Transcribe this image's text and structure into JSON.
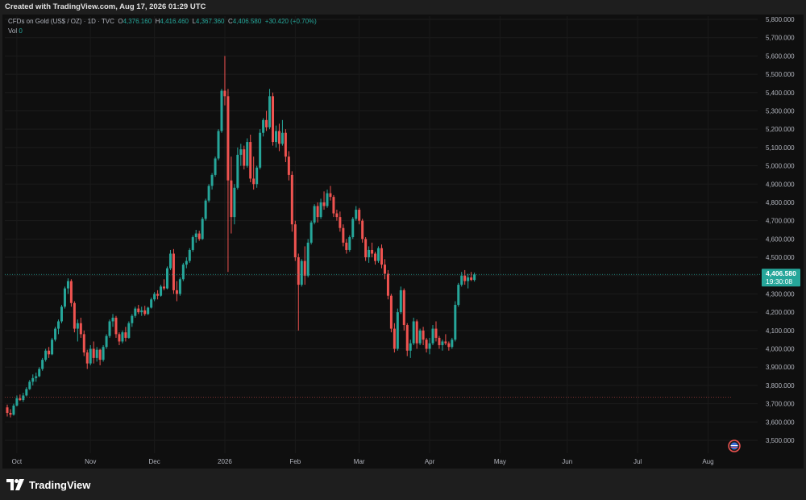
{
  "header": {
    "credit": "Created with TradingView.com, Aug 17, 2026 01:29 UTC"
  },
  "legend": {
    "symbol": "CFDs on Gold (US$ / OZ) · 1D · TVC",
    "open_label": "O",
    "open": "4,376.160",
    "high_label": "H",
    "high": "4,416.460",
    "low_label": "L",
    "low": "4,367.360",
    "close_label": "C",
    "close": "4,406.580",
    "change": "+30.420 (+0.70%)",
    "vol_label": "Vol",
    "vol_value": "0"
  },
  "price_badge": {
    "price": "4,406.580",
    "countdown": "19:30:08"
  },
  "footer": {
    "brand": "TradingView"
  },
  "colors": {
    "up": "#26a69a",
    "down": "#ef5350",
    "background": "#0f0f0f",
    "axis_text": "#b2b5be"
  },
  "chart_data": {
    "type": "candlestick",
    "interval": "1D",
    "ylim": [
      3450,
      5860
    ],
    "y_ticks": [
      3500,
      3600,
      3700,
      3800,
      3900,
      4000,
      4100,
      4200,
      4300,
      4400,
      4500,
      4600,
      4700,
      4800,
      4900,
      5000,
      5100,
      5200,
      5300,
      5400,
      5500,
      5600,
      5700,
      5800
    ],
    "y_tick_labels": [
      "3,500.000",
      "3,600.000",
      "3,700.000",
      "3,800.000",
      "3,900.000",
      "4,000.000",
      "4,100.000",
      "4,200.000",
      "4,300.000",
      "4,400.000",
      "4,500.000",
      "4,600.000",
      "4,700.000",
      "4,800.000",
      "4,900.000",
      "5,000.000",
      "5,100.000",
      "5,200.000",
      "5,300.000",
      "5,400.000",
      "5,500.000",
      "5,600.000",
      "5,700.000",
      "5,800.000"
    ],
    "x_ticks": [
      {
        "label": "Oct",
        "day": 3
      },
      {
        "label": "Nov",
        "day": 26
      },
      {
        "label": "Dec",
        "day": 46
      },
      {
        "label": "2026",
        "day": 68
      },
      {
        "label": "Feb",
        "day": 90
      },
      {
        "label": "Mar",
        "day": 110
      },
      {
        "label": "Apr",
        "day": 132
      },
      {
        "label": "May",
        "day": 154
      },
      {
        "label": "Jun",
        "day": 175
      },
      {
        "label": "Jul",
        "day": 197
      },
      {
        "label": "Aug",
        "day": 219
      }
    ],
    "last_price": 4406.58,
    "reference_line": 3735,
    "candles": [
      [
        3680,
        3695,
        3630,
        3650
      ],
      [
        3650,
        3670,
        3625,
        3640
      ],
      [
        3640,
        3700,
        3635,
        3690
      ],
      [
        3690,
        3745,
        3685,
        3730
      ],
      [
        3730,
        3750,
        3715,
        3720
      ],
      [
        3720,
        3760,
        3710,
        3745
      ],
      [
        3745,
        3790,
        3740,
        3780
      ],
      [
        3780,
        3830,
        3775,
        3820
      ],
      [
        3820,
        3860,
        3800,
        3840
      ],
      [
        3840,
        3870,
        3820,
        3850
      ],
      [
        3850,
        3900,
        3845,
        3890
      ],
      [
        3890,
        3950,
        3880,
        3940
      ],
      [
        3940,
        4000,
        3930,
        3990
      ],
      [
        3990,
        4010,
        3950,
        3970
      ],
      [
        3970,
        4060,
        3965,
        4050
      ],
      [
        4050,
        4120,
        4040,
        4110
      ],
      [
        4110,
        4160,
        4080,
        4150
      ],
      [
        4150,
        4240,
        4140,
        4230
      ],
      [
        4230,
        4340,
        4220,
        4330
      ],
      [
        4330,
        4385,
        4300,
        4370
      ],
      [
        4370,
        4380,
        4230,
        4250
      ],
      [
        4250,
        4260,
        4090,
        4110
      ],
      [
        4110,
        4160,
        4040,
        4140
      ],
      [
        4140,
        4170,
        4060,
        4080
      ],
      [
        4080,
        4100,
        3960,
        3980
      ],
      [
        3980,
        3995,
        3890,
        3920
      ],
      [
        3920,
        4020,
        3910,
        4000
      ],
      [
        4000,
        4040,
        3920,
        3950
      ],
      [
        3950,
        4010,
        3930,
        3995
      ],
      [
        3995,
        4000,
        3910,
        3940
      ],
      [
        3940,
        4020,
        3930,
        4010
      ],
      [
        4010,
        4080,
        4000,
        4070
      ],
      [
        4070,
        4160,
        4060,
        4150
      ],
      [
        4150,
        4190,
        4120,
        4170
      ],
      [
        4170,
        4180,
        4060,
        4080
      ],
      [
        4080,
        4090,
        4020,
        4040
      ],
      [
        4040,
        4100,
        4030,
        4090
      ],
      [
        4090,
        4120,
        4040,
        4060
      ],
      [
        4060,
        4150,
        4055,
        4140
      ],
      [
        4140,
        4190,
        4120,
        4180
      ],
      [
        4180,
        4230,
        4170,
        4220
      ],
      [
        4220,
        4240,
        4190,
        4200
      ],
      [
        4200,
        4230,
        4180,
        4210
      ],
      [
        4210,
        4235,
        4180,
        4190
      ],
      [
        4190,
        4230,
        4185,
        4225
      ],
      [
        4225,
        4280,
        4220,
        4270
      ],
      [
        4270,
        4310,
        4260,
        4300
      ],
      [
        4300,
        4320,
        4270,
        4290
      ],
      [
        4290,
        4350,
        4285,
        4340
      ],
      [
        4340,
        4380,
        4320,
        4330
      ],
      [
        4330,
        4450,
        4325,
        4440
      ],
      [
        4440,
        4540,
        4430,
        4520
      ],
      [
        4520,
        4545,
        4300,
        4320
      ],
      [
        4320,
        4370,
        4260,
        4300
      ],
      [
        4300,
        4390,
        4290,
        4380
      ],
      [
        4380,
        4470,
        4370,
        4460
      ],
      [
        4460,
        4500,
        4440,
        4480
      ],
      [
        4480,
        4550,
        4470,
        4540
      ],
      [
        4540,
        4620,
        4530,
        4610
      ],
      [
        4610,
        4650,
        4580,
        4630
      ],
      [
        4630,
        4645,
        4590,
        4600
      ],
      [
        4600,
        4720,
        4595,
        4710
      ],
      [
        4710,
        4820,
        4700,
        4810
      ],
      [
        4810,
        4900,
        4800,
        4890
      ],
      [
        4890,
        4960,
        4870,
        4950
      ],
      [
        4950,
        5050,
        4940,
        5040
      ],
      [
        5040,
        5200,
        5030,
        5190
      ],
      [
        5190,
        5420,
        5180,
        5410
      ],
      [
        5410,
        5600,
        5330,
        5380
      ],
      [
        5380,
        5420,
        4420,
        4920
      ],
      [
        4920,
        5050,
        4630,
        4720
      ],
      [
        4720,
        4900,
        4680,
        4880
      ],
      [
        4880,
        5100,
        4870,
        5060
      ],
      [
        5060,
        5120,
        5000,
        5090
      ],
      [
        5090,
        5110,
        4980,
        5000
      ],
      [
        5000,
        5150,
        4990,
        5130
      ],
      [
        5130,
        5170,
        4910,
        4930
      ],
      [
        4930,
        5050,
        4870,
        4900
      ],
      [
        4900,
        5000,
        4880,
        4990
      ],
      [
        4990,
        5200,
        4980,
        5180
      ],
      [
        5180,
        5260,
        5160,
        5250
      ],
      [
        5250,
        5300,
        5190,
        5210
      ],
      [
        5210,
        5420,
        5200,
        5380
      ],
      [
        5380,
        5400,
        5110,
        5130
      ],
      [
        5130,
        5220,
        5100,
        5190
      ],
      [
        5190,
        5230,
        5080,
        5120
      ],
      [
        5120,
        5250,
        5110,
        5180
      ],
      [
        5180,
        5200,
        5020,
        5050
      ],
      [
        5050,
        5080,
        4920,
        4950
      ],
      [
        4950,
        4970,
        4640,
        4680
      ],
      [
        4680,
        4700,
        4480,
        4500
      ],
      [
        4500,
        4520,
        4100,
        4350
      ],
      [
        4350,
        4490,
        4340,
        4480
      ],
      [
        4480,
        4560,
        4350,
        4400
      ],
      [
        4400,
        4600,
        4390,
        4580
      ],
      [
        4580,
        4700,
        4570,
        4690
      ],
      [
        4690,
        4790,
        4680,
        4780
      ],
      [
        4780,
        4800,
        4690,
        4720
      ],
      [
        4720,
        4820,
        4710,
        4800
      ],
      [
        4800,
        4860,
        4760,
        4780
      ],
      [
        4780,
        4870,
        4770,
        4850
      ],
      [
        4850,
        4890,
        4810,
        4830
      ],
      [
        4830,
        4840,
        4720,
        4740
      ],
      [
        4740,
        4760,
        4700,
        4720
      ],
      [
        4720,
        4750,
        4640,
        4660
      ],
      [
        4660,
        4680,
        4560,
        4580
      ],
      [
        4580,
        4600,
        4520,
        4540
      ],
      [
        4540,
        4620,
        4530,
        4610
      ],
      [
        4610,
        4720,
        4600,
        4710
      ],
      [
        4710,
        4780,
        4700,
        4760
      ],
      [
        4760,
        4770,
        4680,
        4700
      ],
      [
        4700,
        4710,
        4580,
        4600
      ],
      [
        4600,
        4610,
        4480,
        4500
      ],
      [
        4500,
        4560,
        4470,
        4540
      ],
      [
        4540,
        4580,
        4500,
        4520
      ],
      [
        4520,
        4530,
        4460,
        4480
      ],
      [
        4480,
        4560,
        4470,
        4550
      ],
      [
        4550,
        4570,
        4440,
        4460
      ],
      [
        4460,
        4490,
        4380,
        4410
      ],
      [
        4410,
        4430,
        4270,
        4290
      ],
      [
        4290,
        4300,
        4090,
        4110
      ],
      [
        4110,
        4140,
        3980,
        4000
      ],
      [
        4000,
        4220,
        3990,
        4200
      ],
      [
        4200,
        4340,
        4190,
        4320
      ],
      [
        4320,
        4330,
        4100,
        4130
      ],
      [
        4130,
        4140,
        3960,
        3990
      ],
      [
        3990,
        4050,
        3950,
        4030
      ],
      [
        4030,
        4170,
        4020,
        4150
      ],
      [
        4150,
        4160,
        4000,
        4030
      ],
      [
        4030,
        4110,
        4020,
        4100
      ],
      [
        4100,
        4120,
        4020,
        4050
      ],
      [
        4050,
        4060,
        3980,
        4000
      ],
      [
        4000,
        4060,
        3970,
        4030
      ],
      [
        4030,
        4130,
        4020,
        4110
      ],
      [
        4110,
        4150,
        4040,
        4060
      ],
      [
        4060,
        4070,
        4000,
        4020
      ],
      [
        4020,
        4050,
        3990,
        4040
      ],
      [
        4040,
        4080,
        4020,
        4030
      ],
      [
        4030,
        4040,
        3990,
        4010
      ],
      [
        4010,
        4060,
        4000,
        4050
      ],
      [
        4050,
        4260,
        4040,
        4240
      ],
      [
        4240,
        4360,
        4230,
        4350
      ],
      [
        4350,
        4420,
        4340,
        4400
      ],
      [
        4400,
        4430,
        4350,
        4370
      ],
      [
        4370,
        4410,
        4330,
        4390
      ],
      [
        4390,
        4420,
        4370,
        4376.16
      ],
      [
        4376.16,
        4416.46,
        4367.36,
        4406.58
      ]
    ]
  }
}
